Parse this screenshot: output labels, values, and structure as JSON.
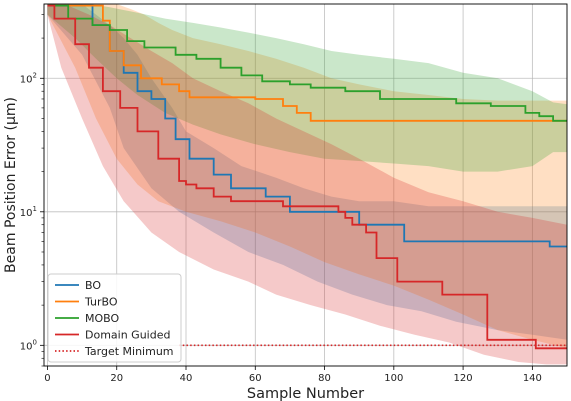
{
  "chart_data": {
    "type": "line",
    "title": "",
    "xlabel": "Sample Number",
    "ylabel": "Beam Position Error (μm)",
    "xlim": [
      -1,
      150
    ],
    "ylim": [
      0.7,
      360
    ],
    "yscale": "log",
    "x_ticks": [
      0,
      20,
      40,
      60,
      80,
      100,
      120,
      140
    ],
    "y_ticks": [
      {
        "value": 1,
        "base": "10",
        "exp": "0"
      },
      {
        "value": 10,
        "base": "10",
        "exp": "1"
      },
      {
        "value": 100,
        "base": "10",
        "exp": "2"
      }
    ],
    "grid": true,
    "legend_position": "lower-left",
    "series": [
      {
        "name": "BO",
        "color": "#1f77b4",
        "steps": [
          [
            0,
            350
          ],
          [
            10,
            350
          ],
          [
            13,
            250
          ],
          [
            18,
            160
          ],
          [
            22,
            110
          ],
          [
            26,
            80
          ],
          [
            30,
            70
          ],
          [
            34,
            50
          ],
          [
            37,
            35
          ],
          [
            41,
            25
          ],
          [
            48,
            19
          ],
          [
            53,
            15
          ],
          [
            60,
            15
          ],
          [
            63,
            13
          ],
          [
            70,
            10
          ],
          [
            78,
            10
          ],
          [
            86,
            10
          ],
          [
            90,
            8
          ],
          [
            96,
            8
          ],
          [
            102,
            8
          ],
          [
            103,
            6
          ],
          [
            120,
            6
          ],
          [
            145,
            5.5
          ],
          [
            150,
            5.5
          ]
        ],
        "upper": [
          [
            0,
            360
          ],
          [
            10,
            360
          ],
          [
            14,
            300
          ],
          [
            18,
            250
          ],
          [
            22,
            200
          ],
          [
            26,
            150
          ],
          [
            30,
            100
          ],
          [
            36,
            60
          ],
          [
            40,
            40
          ],
          [
            48,
            30
          ],
          [
            56,
            22
          ],
          [
            66,
            18
          ],
          [
            74,
            15
          ],
          [
            82,
            13
          ],
          [
            90,
            12
          ],
          [
            100,
            12
          ],
          [
            110,
            11
          ],
          [
            120,
            11
          ],
          [
            130,
            11
          ],
          [
            140,
            11
          ],
          [
            150,
            11
          ]
        ],
        "lower": [
          [
            0,
            300
          ],
          [
            10,
            150
          ],
          [
            18,
            60
          ],
          [
            22,
            30
          ],
          [
            30,
            15
          ],
          [
            38,
            10
          ],
          [
            48,
            7
          ],
          [
            58,
            5
          ],
          [
            68,
            4
          ],
          [
            78,
            3
          ],
          [
            88,
            2.4
          ],
          [
            98,
            2
          ],
          [
            108,
            1.8
          ],
          [
            118,
            1.5
          ],
          [
            130,
            1.3
          ],
          [
            140,
            1.2
          ],
          [
            150,
            1.1
          ]
        ]
      },
      {
        "name": "TurBO",
        "color": "#ff7f0e",
        "steps": [
          [
            0,
            350
          ],
          [
            15,
            350
          ],
          [
            16,
            270
          ],
          [
            18,
            160
          ],
          [
            22,
            125
          ],
          [
            27,
            100
          ],
          [
            33,
            90
          ],
          [
            38,
            80
          ],
          [
            41,
            72
          ],
          [
            60,
            70
          ],
          [
            68,
            62
          ],
          [
            72,
            55
          ],
          [
            76,
            48
          ],
          [
            90,
            48
          ],
          [
            104,
            48
          ],
          [
            150,
            48
          ]
        ],
        "upper": [
          [
            0,
            360
          ],
          [
            20,
            360
          ],
          [
            24,
            330
          ],
          [
            28,
            300
          ],
          [
            32,
            260
          ],
          [
            36,
            230
          ],
          [
            42,
            200
          ],
          [
            50,
            180
          ],
          [
            58,
            160
          ],
          [
            66,
            140
          ],
          [
            74,
            120
          ],
          [
            82,
            100
          ],
          [
            90,
            90
          ],
          [
            100,
            80
          ],
          [
            110,
            75
          ],
          [
            120,
            70
          ],
          [
            130,
            68
          ],
          [
            140,
            68
          ],
          [
            150,
            68
          ]
        ],
        "lower": [
          [
            0,
            300
          ],
          [
            8,
            120
          ],
          [
            14,
            50
          ],
          [
            20,
            25
          ],
          [
            26,
            16
          ],
          [
            32,
            12
          ],
          [
            40,
            10
          ],
          [
            50,
            8.5
          ],
          [
            60,
            7
          ],
          [
            70,
            5.5
          ],
          [
            80,
            4.2
          ],
          [
            90,
            3.4
          ],
          [
            100,
            2.8
          ],
          [
            110,
            2.2
          ],
          [
            120,
            1.7
          ],
          [
            130,
            1.3
          ],
          [
            140,
            1.1
          ],
          [
            150,
            0.95
          ]
        ]
      },
      {
        "name": "MOBO",
        "color": "#2ca02c",
        "steps": [
          [
            0,
            350
          ],
          [
            4,
            350
          ],
          [
            6,
            280
          ],
          [
            13,
            250
          ],
          [
            18,
            230
          ],
          [
            23,
            190
          ],
          [
            28,
            170
          ],
          [
            37,
            150
          ],
          [
            43,
            140
          ],
          [
            50,
            120
          ],
          [
            56,
            105
          ],
          [
            62,
            95
          ],
          [
            70,
            90
          ],
          [
            76,
            85
          ],
          [
            86,
            80
          ],
          [
            96,
            70
          ],
          [
            108,
            70
          ],
          [
            118,
            65
          ],
          [
            128,
            62
          ],
          [
            138,
            55
          ],
          [
            142,
            52
          ],
          [
            146,
            48
          ],
          [
            150,
            48
          ]
        ],
        "upper": [
          [
            0,
            360
          ],
          [
            12,
            360
          ],
          [
            18,
            340
          ],
          [
            26,
            310
          ],
          [
            34,
            280
          ],
          [
            42,
            260
          ],
          [
            50,
            240
          ],
          [
            58,
            220
          ],
          [
            66,
            200
          ],
          [
            74,
            180
          ],
          [
            82,
            160
          ],
          [
            90,
            150
          ],
          [
            100,
            140
          ],
          [
            110,
            130
          ],
          [
            120,
            110
          ],
          [
            130,
            100
          ],
          [
            140,
            80
          ],
          [
            146,
            66
          ],
          [
            150,
            64
          ]
        ],
        "lower": [
          [
            0,
            300
          ],
          [
            8,
            200
          ],
          [
            14,
            140
          ],
          [
            20,
            100
          ],
          [
            26,
            75
          ],
          [
            34,
            55
          ],
          [
            42,
            45
          ],
          [
            50,
            38
          ],
          [
            60,
            32
          ],
          [
            70,
            28
          ],
          [
            80,
            25
          ],
          [
            90,
            24
          ],
          [
            100,
            23
          ],
          [
            110,
            22
          ],
          [
            120,
            20
          ],
          [
            130,
            20
          ],
          [
            140,
            22
          ],
          [
            146,
            28
          ],
          [
            150,
            28
          ]
        ]
      },
      {
        "name": "Domain Guided",
        "color": "#d62728",
        "steps": [
          [
            0,
            350
          ],
          [
            1,
            350
          ],
          [
            2,
            280
          ],
          [
            8,
            180
          ],
          [
            12,
            120
          ],
          [
            16,
            80
          ],
          [
            21,
            60
          ],
          [
            26,
            40
          ],
          [
            32,
            25
          ],
          [
            38,
            17
          ],
          [
            40,
            16
          ],
          [
            43,
            15
          ],
          [
            48,
            13
          ],
          [
            53,
            12
          ],
          [
            60,
            12
          ],
          [
            68,
            11
          ],
          [
            76,
            11
          ],
          [
            84,
            10
          ],
          [
            86,
            9
          ],
          [
            88,
            8
          ],
          [
            92,
            7
          ],
          [
            95,
            4.5
          ],
          [
            100,
            4.5
          ],
          [
            101,
            3
          ],
          [
            113,
            3
          ],
          [
            114,
            2.4
          ],
          [
            126,
            2.4
          ],
          [
            127,
            1.1
          ],
          [
            140,
            1.1
          ],
          [
            141,
            0.95
          ],
          [
            150,
            0.95
          ]
        ],
        "upper": [
          [
            0,
            360
          ],
          [
            6,
            350
          ],
          [
            12,
            300
          ],
          [
            18,
            250
          ],
          [
            24,
            200
          ],
          [
            30,
            160
          ],
          [
            36,
            130
          ],
          [
            42,
            100
          ],
          [
            50,
            80
          ],
          [
            58,
            65
          ],
          [
            66,
            50
          ],
          [
            74,
            40
          ],
          [
            82,
            32
          ],
          [
            90,
            25
          ],
          [
            100,
            18
          ],
          [
            110,
            14
          ],
          [
            120,
            12
          ],
          [
            130,
            10
          ],
          [
            140,
            9
          ],
          [
            150,
            8
          ]
        ],
        "lower": [
          [
            0,
            300
          ],
          [
            4,
            120
          ],
          [
            10,
            50
          ],
          [
            16,
            22
          ],
          [
            22,
            12
          ],
          [
            30,
            7
          ],
          [
            38,
            5
          ],
          [
            48,
            3.7
          ],
          [
            58,
            3
          ],
          [
            66,
            2.4
          ],
          [
            76,
            2
          ],
          [
            86,
            1.7
          ],
          [
            96,
            1.4
          ],
          [
            106,
            1.2
          ],
          [
            116,
            1.05
          ],
          [
            126,
            0.85
          ],
          [
            136,
            0.75
          ],
          [
            144,
            0.72
          ],
          [
            150,
            0.72
          ]
        ]
      },
      {
        "name": "Target Minimum",
        "color": "#d62728",
        "style": "dotted",
        "constant": 1.0,
        "x_start": 38,
        "x_end": 150
      }
    ]
  }
}
